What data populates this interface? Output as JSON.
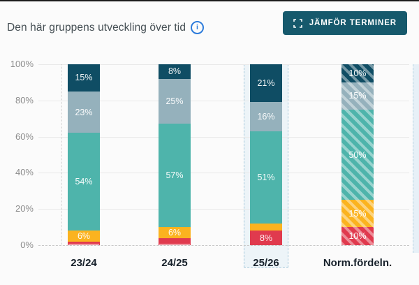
{
  "header": {
    "title": "Den här gruppens utveckling över tid",
    "info_icon": "info-icon",
    "compare_button": {
      "label": "JÄMFÖR TERMINER",
      "icon": "expand-icon"
    }
  },
  "colors": {
    "button_bg": "#16596c",
    "dark_teal": "#0f4d64",
    "gray_blue": "#95b1bc",
    "teal": "#4eb4ab",
    "yellow": "#fbb31f",
    "red": "#e03a4e",
    "white_segment_border": "#e03a4e",
    "highlight_bg": "#edf4f8",
    "highlight_border": "#a5c8db",
    "info_blue": "#2e7cdb"
  },
  "chart_data": {
    "type": "bar",
    "stacked": true,
    "title": "Den här gruppens utveckling över tid",
    "xlabel": "",
    "ylabel": "",
    "ylim": [
      0,
      100
    ],
    "grid": true,
    "categories": [
      "23/24",
      "24/25",
      "25/26",
      "Norm.fördeln."
    ],
    "highlighted_category": "25/26",
    "hatched": [
      false,
      false,
      false,
      true
    ],
    "y_ticks": [
      {
        "label": "0%",
        "value": 0
      },
      {
        "label": "20%",
        "value": 20
      },
      {
        "label": "40%",
        "value": 40
      },
      {
        "label": "60%",
        "value": 60
      },
      {
        "label": "80%",
        "value": 80
      },
      {
        "label": "100%",
        "value": 100
      }
    ],
    "series": [
      {
        "name": "dark-teal",
        "color": "#0f4d64",
        "values": [
          15,
          8,
          21,
          10
        ],
        "labels": [
          "15%",
          "8%",
          "21%",
          "10%"
        ]
      },
      {
        "name": "gray-blue",
        "color": "#95b1bc",
        "values": [
          23,
          25,
          16,
          15
        ],
        "labels": [
          "23%",
          "25%",
          "16%",
          "15%"
        ]
      },
      {
        "name": "teal",
        "color": "#4eb4ab",
        "values": [
          54,
          57,
          51,
          50
        ],
        "labels": [
          "54%",
          "57%",
          "51%",
          "50%"
        ]
      },
      {
        "name": "yellow",
        "color": "#fbb31f",
        "values": [
          6,
          6,
          4,
          15
        ],
        "labels": [
          "6%",
          "6%",
          "",
          "15%"
        ]
      },
      {
        "name": "red",
        "color": "#e03a4e",
        "values": [
          1,
          3,
          8,
          10
        ],
        "labels": [
          "",
          "",
          "8%",
          "10%"
        ]
      },
      {
        "name": "white-outlined",
        "color": "#ffffff",
        "values": [
          1,
          1,
          0,
          0
        ],
        "labels": [
          "",
          "",
          "",
          ""
        ]
      }
    ]
  }
}
